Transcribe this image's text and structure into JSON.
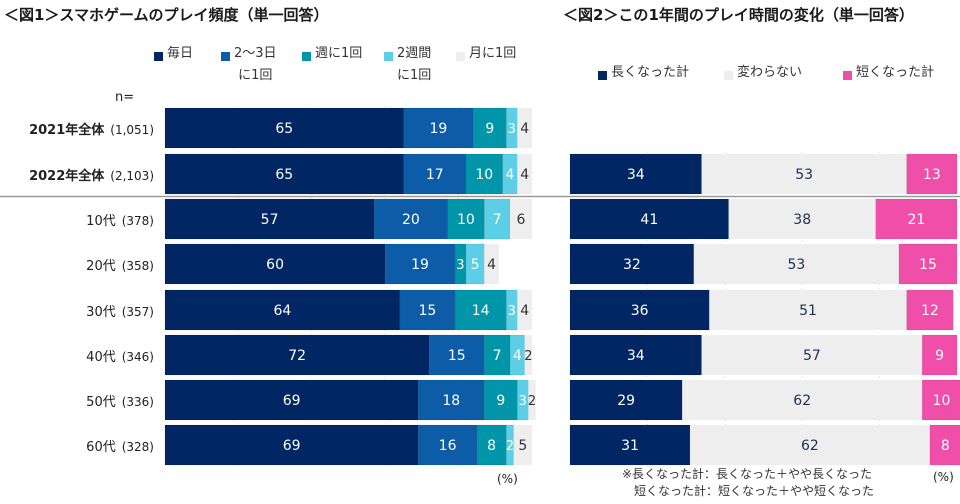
{
  "chart_data": [
    {
      "type": "bar",
      "orientation": "horizontal",
      "stacked": true,
      "title": "＜図1＞スマホゲームのプレイ頻度（単一回答）",
      "n_label": "n=",
      "unit_label": "(%)",
      "xlim": [
        0,
        100
      ],
      "categories": [
        {
          "label": "2021年全体",
          "n": "(1,051)",
          "bold": true
        },
        {
          "label": "2022年全体",
          "n": "(2,103)",
          "bold": true
        },
        {
          "label": "10代",
          "n": "(378)",
          "bold": false
        },
        {
          "label": "20代",
          "n": "(358)",
          "bold": false
        },
        {
          "label": "30代",
          "n": "(357)",
          "bold": false
        },
        {
          "label": "40代",
          "n": "(346)",
          "bold": false
        },
        {
          "label": "50代",
          "n": "(336)",
          "bold": false
        },
        {
          "label": "60代",
          "n": "(328)",
          "bold": false
        }
      ],
      "series": [
        {
          "name": "毎日",
          "legend_lines": [
            "毎日"
          ],
          "color": "#002663",
          "label_color": "#ffffff",
          "values": [
            65,
            65,
            57,
            60,
            64,
            72,
            69,
            69
          ]
        },
        {
          "name": "2〜3日に1回",
          "legend_lines": [
            "2〜3日",
            "に1回"
          ],
          "color": "#0d5ca8",
          "label_color": "#ffffff",
          "values": [
            19,
            17,
            20,
            19,
            15,
            15,
            18,
            16
          ]
        },
        {
          "name": "週に1回",
          "legend_lines": [
            "週に1回"
          ],
          "color": "#0095a8",
          "label_color": "#ffffff",
          "values": [
            9,
            10,
            10,
            3,
            14,
            7,
            9,
            8
          ]
        },
        {
          "name": "2週間に1回",
          "legend_lines": [
            "2週間",
            "に1回"
          ],
          "color": "#5ccfe6",
          "label_color": "#ffffff",
          "values": [
            3,
            4,
            7,
            5,
            3,
            4,
            3,
            2
          ]
        },
        {
          "name": "月に1回",
          "legend_lines": [
            "月に1回"
          ],
          "color": "#eeeeee",
          "label_color": "#333333",
          "values": [
            4,
            4,
            6,
            4,
            4,
            2,
            2,
            5
          ]
        }
      ]
    },
    {
      "type": "bar",
      "orientation": "horizontal",
      "stacked": true,
      "title": "＜図2＞この1年間のプレイ時間の変化（単一回答）",
      "unit_label": "(%)",
      "xlim": [
        0,
        100
      ],
      "categories": [
        "2022年全体",
        "10代",
        "20代",
        "30代",
        "40代",
        "50代",
        "60代"
      ],
      "series": [
        {
          "name": "長くなった計",
          "color": "#002663",
          "label_color": "#ffffff",
          "values": [
            34,
            41,
            32,
            36,
            34,
            29,
            31
          ]
        },
        {
          "name": "変わらない",
          "color": "#eeeeee",
          "label_color": "#1f3050",
          "values": [
            53,
            38,
            53,
            51,
            57,
            62,
            62
          ]
        },
        {
          "name": "短くなった計",
          "color": "#ef4fa8",
          "label_color": "#ffffff",
          "values": [
            13,
            21,
            15,
            12,
            9,
            10,
            8
          ]
        }
      ],
      "notes": [
        "※長くなった計：長くなった＋やや長くなった",
        "　短くなった計：短くなった＋やや短くなった"
      ]
    }
  ]
}
